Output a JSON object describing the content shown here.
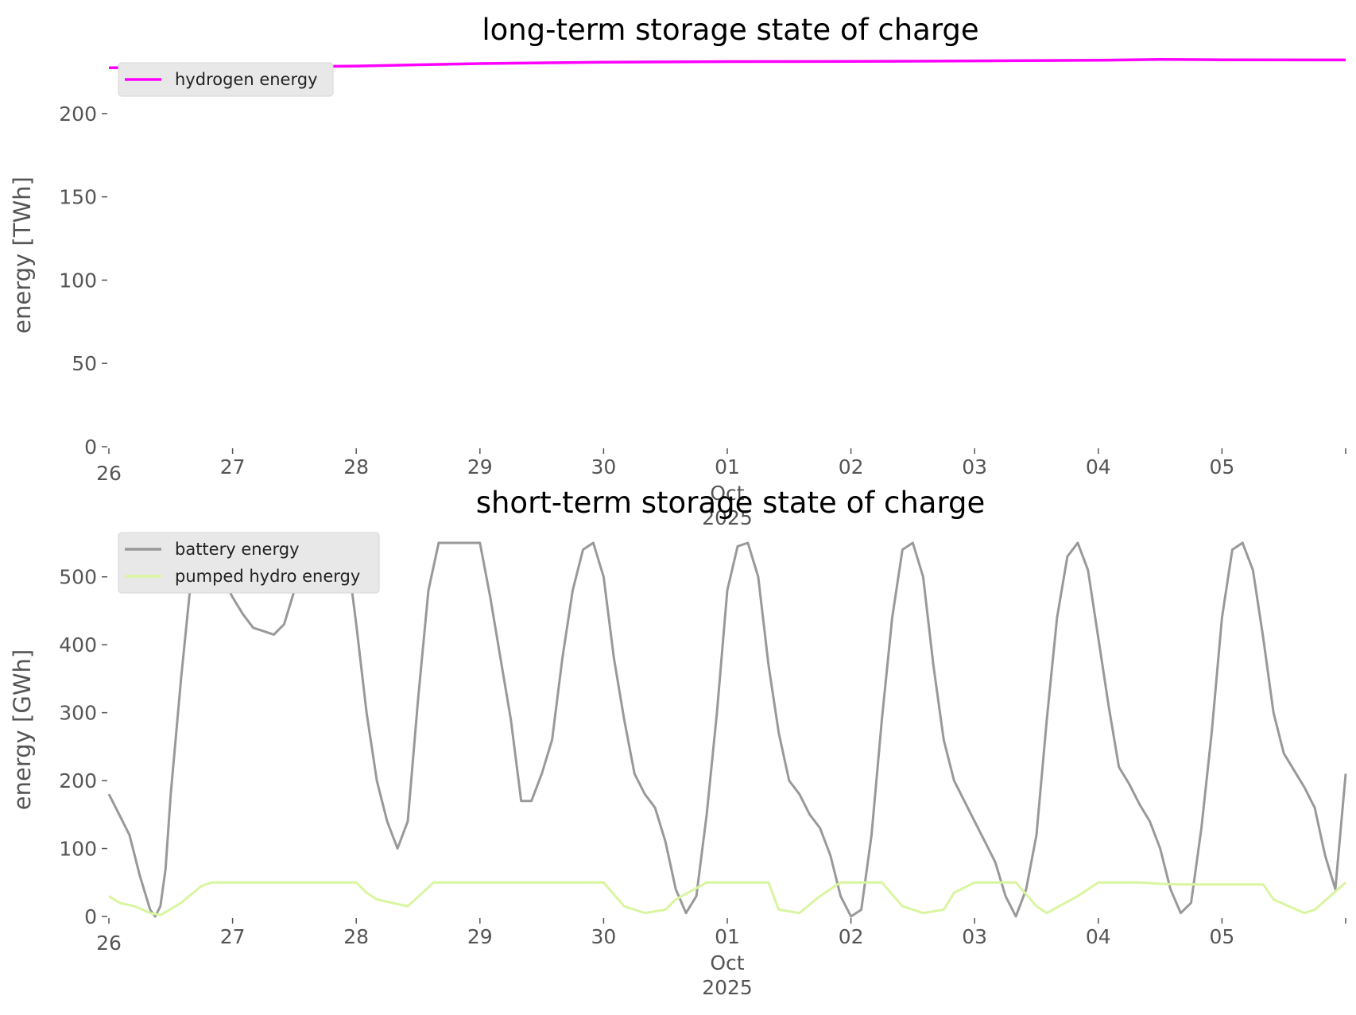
{
  "chart_data": [
    {
      "type": "line",
      "title": "long-term storage state of charge",
      "xlabel": "",
      "ylabel": "energy [TWh]",
      "x_range": [
        "2025-09-26",
        "2025-10-06"
      ],
      "ylim": [
        0,
        230
      ],
      "y_ticks": [
        0,
        50,
        100,
        150,
        200
      ],
      "x_ticks": [
        "26",
        "27",
        "28",
        "29",
        "30",
        "01",
        "02",
        "03",
        "04",
        "05"
      ],
      "x_tick_dates": [
        "2025-09-26",
        "2025-09-27",
        "2025-09-28",
        "2025-09-29",
        "2025-09-30",
        "2025-10-01",
        "2025-10-02",
        "2025-10-03",
        "2025-10-04",
        "2025-10-05"
      ],
      "x_month_label": [
        "Oct",
        "2025"
      ],
      "grid": false,
      "legend": "upper-left",
      "series": [
        {
          "name": "hydrogen energy",
          "color": "#ff00ff",
          "x_hours": [
            0,
            24,
            48,
            60,
            72,
            96,
            120,
            144,
            168,
            192,
            204,
            216,
            240
          ],
          "values": [
            227.5,
            227.8,
            228.5,
            229.3,
            230,
            230.8,
            231.2,
            231.3,
            231.6,
            232,
            232.5,
            232.3,
            232.2
          ]
        }
      ]
    },
    {
      "type": "line",
      "title": "short-term storage state of charge",
      "xlabel": "",
      "ylabel": "energy [GWh]",
      "x_range": [
        "2025-09-26",
        "2025-10-06"
      ],
      "ylim": [
        0,
        550
      ],
      "y_ticks": [
        0,
        100,
        200,
        300,
        400,
        500
      ],
      "x_ticks": [
        "26",
        "27",
        "28",
        "29",
        "30",
        "01",
        "02",
        "03",
        "04",
        "05"
      ],
      "x_tick_dates": [
        "2025-09-26",
        "2025-09-27",
        "2025-09-28",
        "2025-09-29",
        "2025-09-30",
        "2025-10-01",
        "2025-10-02",
        "2025-10-03",
        "2025-10-04",
        "2025-10-05"
      ],
      "x_month_label": [
        "Oct",
        "2025"
      ],
      "grid": false,
      "legend": "upper-left",
      "series": [
        {
          "name": "battery energy",
          "color": "#999999",
          "x_hours": [
            0,
            2,
            4,
            6,
            8,
            9,
            10,
            11,
            12,
            14,
            16,
            18,
            20,
            22,
            24,
            26,
            28,
            30,
            32,
            34,
            36,
            38,
            40,
            42,
            44,
            46,
            48,
            50,
            52,
            54,
            56,
            58,
            60,
            62,
            64,
            66,
            68,
            70,
            72,
            74,
            76,
            78,
            80,
            82,
            84,
            86,
            88,
            90,
            92,
            94,
            96,
            98,
            100,
            102,
            104,
            106,
            108,
            110,
            112,
            114,
            116,
            118,
            120,
            122,
            124,
            126,
            128,
            130,
            132,
            134,
            136,
            138,
            140,
            142,
            144,
            146,
            148,
            150,
            152,
            154,
            156,
            158,
            160,
            162,
            164,
            166,
            168,
            170,
            172,
            174,
            176,
            178,
            180,
            182,
            184,
            186,
            188,
            190,
            192,
            194,
            196,
            198,
            200,
            202,
            204,
            206,
            208,
            210,
            212,
            214,
            216,
            218,
            220,
            222,
            224,
            226,
            228,
            230,
            232,
            234,
            236,
            238,
            240
          ],
          "values": [
            180,
            150,
            120,
            60,
            10,
            0,
            15,
            70,
            180,
            350,
            500,
            550,
            545,
            500,
            470,
            445,
            425,
            420,
            415,
            430,
            480,
            550,
            550,
            550,
            550,
            550,
            430,
            300,
            200,
            140,
            100,
            140,
            320,
            480,
            550,
            550,
            550,
            550,
            550,
            470,
            380,
            290,
            170,
            170,
            210,
            260,
            380,
            480,
            540,
            550,
            500,
            380,
            290,
            210,
            180,
            160,
            110,
            40,
            5,
            30,
            150,
            300,
            480,
            545,
            550,
            500,
            370,
            270,
            200,
            180,
            150,
            130,
            90,
            30,
            0,
            10,
            120,
            290,
            440,
            540,
            550,
            500,
            370,
            260,
            200,
            170,
            140,
            110,
            80,
            30,
            0,
            40,
            120,
            290,
            440,
            530,
            550,
            510,
            410,
            310,
            220,
            195,
            165,
            140,
            100,
            40,
            5,
            20,
            130,
            270,
            440,
            540,
            550,
            510,
            410,
            300,
            240,
            215,
            190,
            160,
            90,
            40,
            210
          ]
        },
        {
          "name": "pumped hydro energy",
          "color": "#d9f5a0",
          "x_hours": [
            0,
            2,
            5,
            8,
            10,
            14,
            18,
            20,
            24,
            40,
            48,
            50,
            52,
            58,
            63,
            72,
            96,
            100,
            104,
            108,
            110,
            116,
            120,
            128,
            130,
            134,
            138,
            142,
            144,
            150,
            154,
            158,
            162,
            164,
            168,
            172,
            176,
            180,
            182,
            188,
            192,
            196,
            200,
            204,
            208,
            212,
            216,
            220,
            224,
            226,
            229,
            232,
            234,
            240
          ],
          "values": [
            30,
            20,
            15,
            5,
            2,
            20,
            45,
            50,
            50,
            50,
            50,
            35,
            25,
            15,
            50,
            50,
            50,
            15,
            5,
            10,
            25,
            50,
            50,
            50,
            10,
            5,
            30,
            50,
            50,
            50,
            15,
            5,
            10,
            35,
            50,
            50,
            50,
            15,
            5,
            30,
            50,
            50,
            50,
            48,
            47,
            47,
            47,
            47,
            47,
            25,
            15,
            5,
            10,
            50
          ]
        }
      ]
    }
  ]
}
